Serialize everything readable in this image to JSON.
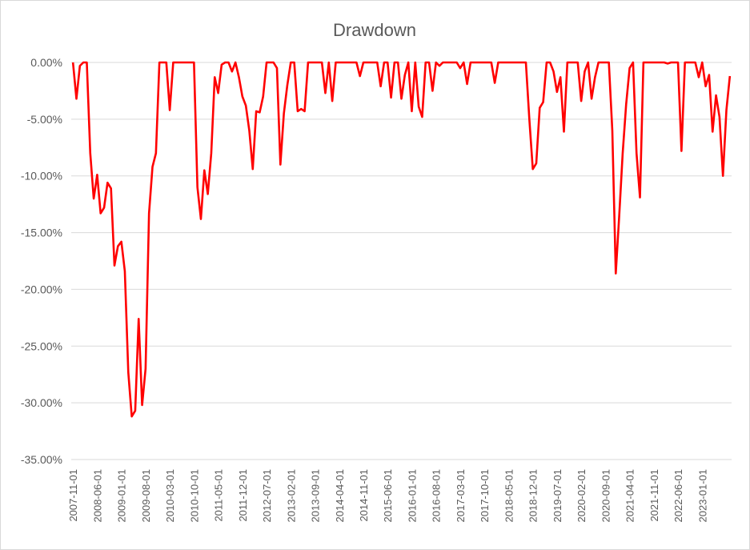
{
  "chart_data": {
    "type": "line",
    "title": "Drawdown",
    "xlabel": "",
    "ylabel": "",
    "ylim": [
      -35,
      0
    ],
    "y_ticks": [
      "0.00%",
      "-5.00%",
      "-10.00%",
      "-15.00%",
      "-20.00%",
      "-25.00%",
      "-30.00%",
      "-35.00%"
    ],
    "x_tick_labels": [
      "2007-11-01",
      "2008-06-01",
      "2009-01-01",
      "2009-08-01",
      "2010-03-01",
      "2010-10-01",
      "2011-05-01",
      "2011-12-01",
      "2012-07-01",
      "2013-02-01",
      "2013-09-01",
      "2014-04-01",
      "2014-11-01",
      "2015-06-01",
      "2016-01-01",
      "2016-08-01",
      "2017-03-01",
      "2017-10-01",
      "2018-05-01",
      "2018-12-01",
      "2019-07-01",
      "2020-02-01",
      "2020-09-01",
      "2021-04-01",
      "2021-11-01",
      "2022-06-01",
      "2023-01-01"
    ],
    "grid": true,
    "legend": "none",
    "line_color": "#ff0000",
    "series": [
      {
        "values": [
          0,
          -3.2,
          -0.3,
          0,
          0,
          -8,
          -12,
          -9.9,
          -13.3,
          -12.8,
          -10.6,
          -11.1,
          -17.9,
          -16.2,
          -15.8,
          -18.4,
          -27.3,
          -31.2,
          -30.7,
          -22.6,
          -30.2,
          -27.0,
          -13.3,
          -9.2,
          -8.0,
          0,
          0,
          0,
          -4.2,
          0,
          0,
          0,
          0,
          0,
          0,
          0,
          -11.0,
          -13.8,
          -9.5,
          -11.6,
          -8.0,
          -1.3,
          -2.7,
          -0.2,
          0,
          0,
          -0.8,
          0,
          -1.3,
          -3.0,
          -3.8,
          -6.0,
          -9.4,
          -4.3,
          -4.4,
          -3.0,
          0,
          0,
          0,
          -0.5,
          -9.0,
          -4.5,
          -2.0,
          0,
          0,
          -4.3,
          -4.1,
          -4.3,
          0,
          0,
          0,
          0,
          0,
          -2.7,
          0,
          -3.4,
          0,
          0,
          0,
          0,
          0,
          0,
          0,
          -1.2,
          0,
          0,
          0,
          0,
          0,
          -2.1,
          0,
          0,
          -3.1,
          0,
          0,
          -3.2,
          -1.1,
          0,
          -4.3,
          0,
          -3.9,
          -4.8,
          0,
          0,
          -2.5,
          0,
          -0.3,
          0,
          0,
          0,
          0,
          0,
          -0.5,
          0,
          -1.9,
          0,
          0,
          0,
          0,
          0,
          0,
          0,
          -1.8,
          0,
          0,
          0,
          0,
          0,
          0,
          0,
          0,
          0,
          -5.0,
          -9.4,
          -8.9,
          -4.0,
          -3.5,
          0,
          0,
          -0.8,
          -2.6,
          -1.3,
          -6.1,
          0,
          0,
          0,
          0,
          -3.4,
          -0.8,
          0,
          -3.2,
          -1.3,
          0,
          0,
          0,
          0,
          -6.0,
          -18.6,
          -13.5,
          -8.0,
          -3.7,
          -0.5,
          0,
          -8.0,
          -11.9,
          0,
          0,
          0,
          0,
          0,
          0,
          0,
          -0.1,
          0,
          0,
          0,
          -7.8,
          0,
          0,
          0,
          0,
          -1.3,
          0,
          -2.1,
          -1.1,
          -6.1,
          -2.9,
          -4.8,
          -10.0,
          -4.2,
          -1.2
        ]
      }
    ]
  }
}
